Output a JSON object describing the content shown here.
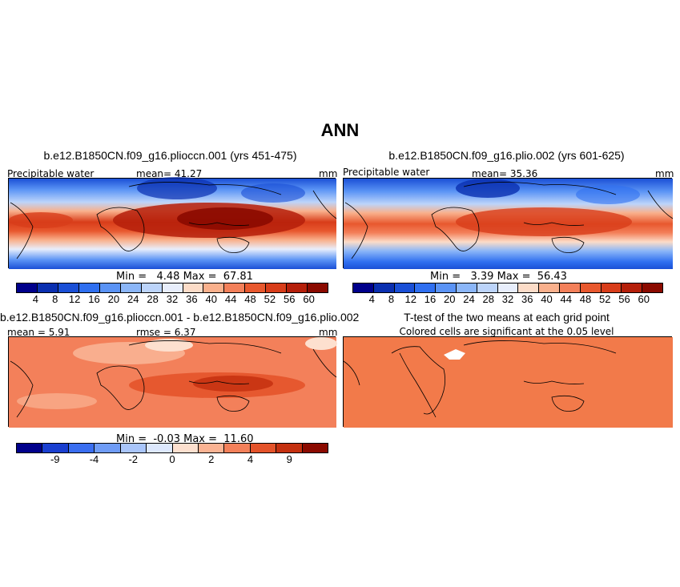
{
  "title": "ANN",
  "panels": {
    "p1": {
      "title": "b.e12.B1850CN.f09_g16.plioccn.001 (yrs 451-475)",
      "left_label": "Precipitable water",
      "mean_label": "mean=  41.27",
      "units": "mm",
      "minmax": "Min =   4.48 Max =  67.81",
      "colorbar_ticks": [
        "4",
        "8",
        "12",
        "16",
        "20",
        "24",
        "28",
        "32",
        "36",
        "40",
        "44",
        "48",
        "52",
        "56",
        "60"
      ]
    },
    "p2": {
      "title": "b.e12.B1850CN.f09_g16.plio.002 (yrs 601-625)",
      "left_label": "Precipitable water",
      "mean_label": "mean=  35.36",
      "units": "mm",
      "minmax": "Min =   3.39 Max =  56.43",
      "colorbar_ticks": [
        "4",
        "8",
        "12",
        "16",
        "20",
        "24",
        "28",
        "32",
        "36",
        "40",
        "44",
        "48",
        "52",
        "56",
        "60"
      ]
    },
    "p3": {
      "title": "b.e12.B1850CN.f09_g16.plioccn.001 - b.e12.B1850CN.f09_g16.plio.002",
      "left_label": "mean =   5.91",
      "mid_label": "rmse =   6.37",
      "units": "mm",
      "minmax": "Min =  -0.03 Max =  11.60",
      "colorbar_ticks": [
        "-9",
        "-4",
        "-2",
        "0",
        "2",
        "4",
        "9"
      ]
    },
    "p4": {
      "title": "T-test of the two means at each grid point",
      "subtitle": "Colored cells are significant at the 0.05 level"
    }
  },
  "colors": {
    "abs_scale": [
      "#00008b",
      "#0a2fb0",
      "#1a4fd6",
      "#2f6ff0",
      "#5a93f5",
      "#8bb6f8",
      "#bcd4fa",
      "#e8eefc",
      "#fcdcc8",
      "#f9b08c",
      "#f3805a",
      "#e8582e",
      "#d83d1a",
      "#b51f0a",
      "#8b0a00"
    ],
    "diff_scale": [
      "#00008b",
      "#1a3fd0",
      "#3a6ef0",
      "#6f9cf6",
      "#a9c5fa",
      "#dde8fd",
      "#fde0cf",
      "#fab393",
      "#f3805a",
      "#e4532a",
      "#c4300f",
      "#8b0a00"
    ],
    "ttest_fill": "#f27a4a"
  }
}
